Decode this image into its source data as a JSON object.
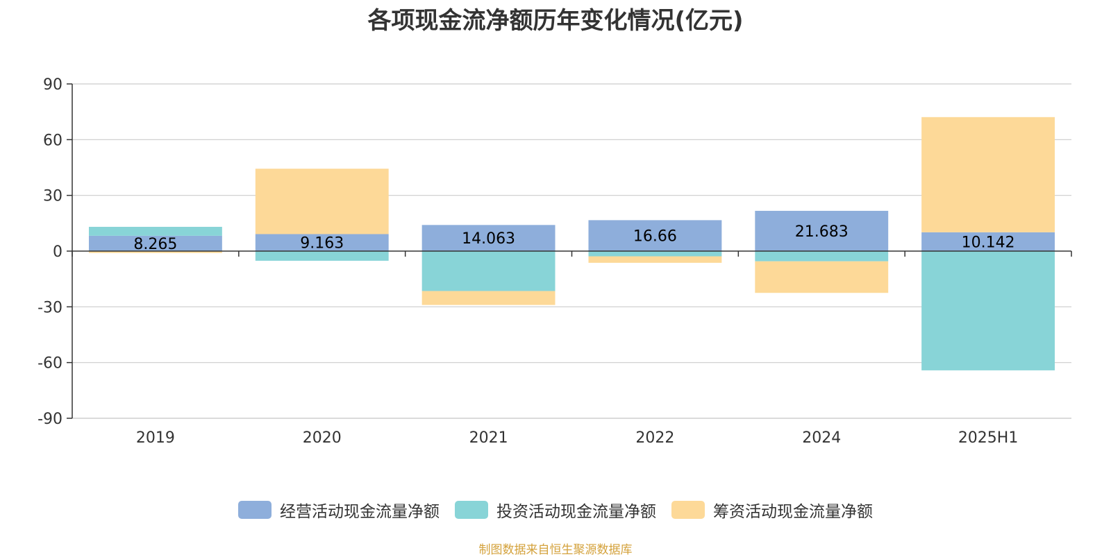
{
  "chart_data": {
    "type": "bar",
    "stacked": true,
    "title": "各项现金流净额历年变化情况(亿元)",
    "categories": [
      "2019",
      "2020",
      "2021",
      "2022",
      "2024",
      "2025H1"
    ],
    "series": [
      {
        "name": "经营活动现金流量净额",
        "color": "#8eaedb",
        "values": [
          8.265,
          9.163,
          14.063,
          16.66,
          21.683,
          10.142
        ]
      },
      {
        "name": "投资活动现金流量净额",
        "color": "#88d4d7",
        "values": [
          4.8,
          -5.2,
          -21.5,
          -2.8,
          -5.5,
          -64.2
        ]
      },
      {
        "name": "筹资活动现金流量净额",
        "color": "#fdd998",
        "values": [
          -1.0,
          35.2,
          -7.5,
          -3.5,
          -17.0,
          62.0
        ]
      }
    ],
    "data_labels": [
      "8.265",
      "9.163",
      "14.063",
      "16.66",
      "21.683",
      "10.142"
    ],
    "y_ticks": [
      "90",
      "60",
      "30",
      "0",
      "-30",
      "-60",
      "-90"
    ],
    "ylim": [
      -90,
      90
    ],
    "grid": true,
    "legend_position": "bottom"
  },
  "source_note": "制图数据来自恒生聚源数据库"
}
